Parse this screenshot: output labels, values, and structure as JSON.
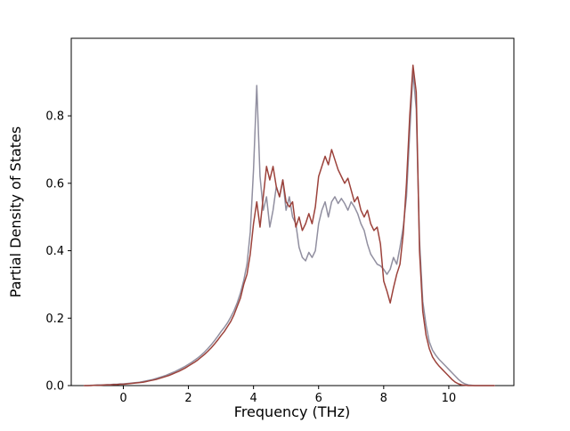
{
  "figure": {
    "background": "#ffffff",
    "plot_background": "#ffffff",
    "spine_color": "#000000"
  },
  "chart_data": {
    "type": "line",
    "title": "",
    "xlabel": "Frequency (THz)",
    "ylabel": "Partial Density of States",
    "xlim": [
      -1.6,
      12.0
    ],
    "ylim": [
      0,
      1.03
    ],
    "xticks": [
      0,
      2,
      4,
      6,
      8,
      10
    ],
    "xtick_labels": [
      "0",
      "2",
      "4",
      "6",
      "8",
      "10"
    ],
    "yticks": [
      0.0,
      0.2,
      0.4,
      0.6,
      0.8
    ],
    "ytick_labels": [
      "0.0",
      "0.2",
      "0.4",
      "0.6",
      "0.8"
    ],
    "grid": false,
    "legend_position": "none",
    "x_start": -1.2,
    "x_step": 0.1,
    "series": [
      {
        "name": "pdos-series-gray",
        "color": "#918fa0",
        "line_width": 1.5,
        "values": [
          0.0,
          0.0,
          0.001,
          0.001,
          0.002,
          0.002,
          0.002,
          0.003,
          0.003,
          0.004,
          0.004,
          0.005,
          0.005,
          0.006,
          0.007,
          0.008,
          0.009,
          0.01,
          0.012,
          0.014,
          0.016,
          0.018,
          0.021,
          0.024,
          0.027,
          0.03,
          0.034,
          0.038,
          0.042,
          0.047,
          0.052,
          0.057,
          0.063,
          0.069,
          0.076,
          0.083,
          0.091,
          0.1,
          0.11,
          0.121,
          0.133,
          0.146,
          0.16,
          0.172,
          0.186,
          0.203,
          0.222,
          0.246,
          0.275,
          0.312,
          0.36,
          0.455,
          0.64,
          0.89,
          0.62,
          0.52,
          0.56,
          0.47,
          0.52,
          0.59,
          0.56,
          0.61,
          0.52,
          0.56,
          0.5,
          0.48,
          0.41,
          0.38,
          0.37,
          0.395,
          0.38,
          0.4,
          0.48,
          0.52,
          0.545,
          0.5,
          0.545,
          0.56,
          0.54,
          0.555,
          0.54,
          0.52,
          0.545,
          0.53,
          0.51,
          0.48,
          0.46,
          0.42,
          0.39,
          0.375,
          0.36,
          0.355,
          0.345,
          0.33,
          0.345,
          0.38,
          0.36,
          0.41,
          0.47,
          0.56,
          0.75,
          0.93,
          0.82,
          0.43,
          0.25,
          0.18,
          0.13,
          0.105,
          0.09,
          0.078,
          0.068,
          0.058,
          0.048,
          0.038,
          0.028,
          0.018,
          0.01,
          0.005,
          0.002,
          0.001,
          0.0,
          0.0,
          0.0,
          0.0,
          0.0,
          0.0,
          0.0
        ]
      },
      {
        "name": "pdos-series-brown",
        "color": "#9c423b",
        "line_width": 1.5,
        "values": [
          0.0,
          0.0,
          0.0,
          0.001,
          0.001,
          0.001,
          0.002,
          0.002,
          0.002,
          0.003,
          0.003,
          0.004,
          0.004,
          0.005,
          0.006,
          0.007,
          0.008,
          0.009,
          0.01,
          0.012,
          0.014,
          0.016,
          0.018,
          0.021,
          0.024,
          0.027,
          0.03,
          0.034,
          0.038,
          0.042,
          0.047,
          0.052,
          0.058,
          0.064,
          0.07,
          0.077,
          0.085,
          0.093,
          0.102,
          0.112,
          0.123,
          0.135,
          0.148,
          0.16,
          0.175,
          0.19,
          0.21,
          0.235,
          0.26,
          0.3,
          0.33,
          0.39,
          0.48,
          0.545,
          0.47,
          0.56,
          0.65,
          0.61,
          0.65,
          0.59,
          0.56,
          0.61,
          0.545,
          0.53,
          0.545,
          0.47,
          0.5,
          0.46,
          0.48,
          0.51,
          0.48,
          0.53,
          0.62,
          0.65,
          0.68,
          0.655,
          0.7,
          0.67,
          0.64,
          0.62,
          0.6,
          0.615,
          0.58,
          0.545,
          0.56,
          0.52,
          0.5,
          0.52,
          0.48,
          0.46,
          0.47,
          0.42,
          0.31,
          0.28,
          0.245,
          0.29,
          0.33,
          0.36,
          0.45,
          0.6,
          0.8,
          0.95,
          0.87,
          0.4,
          0.22,
          0.15,
          0.11,
          0.085,
          0.07,
          0.058,
          0.048,
          0.038,
          0.028,
          0.018,
          0.01,
          0.005,
          0.002,
          0.001,
          0.0,
          0.0,
          0.0,
          0.0,
          0.0,
          0.0,
          0.0,
          0.0,
          0.0
        ]
      }
    ]
  }
}
